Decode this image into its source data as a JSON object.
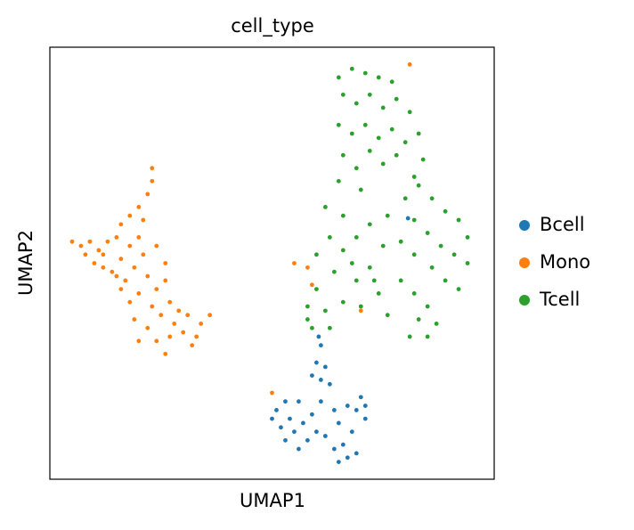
{
  "chart_data": {
    "type": "scatter",
    "title": "cell_type",
    "x_label": "UMAP1",
    "y_label": "UMAP2",
    "xlim": [
      0,
      10
    ],
    "ylim": [
      0,
      10
    ],
    "grid": false,
    "legend": "right",
    "series": [
      {
        "name": "Bcell",
        "color": "#1f77b4",
        "x": [
          5.1,
          5.2,
          5.3,
          5.4,
          5.5,
          5.6,
          5.7,
          5.8,
          5.3,
          5.6,
          5.9,
          6.0,
          6.1,
          6.1,
          6.0,
          6.1,
          6.05,
          6.3,
          6.4,
          6.5,
          6.6,
          6.7,
          6.8,
          6.9,
          7.0,
          7.1,
          6.7,
          6.4,
          6.2,
          7.1,
          5.0,
          6.5,
          6.9,
          5.9,
          6.2,
          8.06
        ],
        "y": [
          1.6,
          1.2,
          0.9,
          1.4,
          1.1,
          0.7,
          1.3,
          0.9,
          1.8,
          1.8,
          1.5,
          1.1,
          1.8,
          2.3,
          2.7,
          3.1,
          3.3,
          2.2,
          1.6,
          1.3,
          0.8,
          0.5,
          1.1,
          1.6,
          1.9,
          1.4,
          1.7,
          0.7,
          1.0,
          1.7,
          1.4,
          0.4,
          0.6,
          2.4,
          2.6,
          6.04
        ]
      },
      {
        "name": "Mono",
        "color": "#ff7f0e",
        "x": [
          0.5,
          0.7,
          0.9,
          0.8,
          1.0,
          1.2,
          1.3,
          1.5,
          1.6,
          1.8,
          2.0,
          2.2,
          2.3,
          2.3,
          2.1,
          1.4,
          1.6,
          1.8,
          2.0,
          1.7,
          1.9,
          2.1,
          2.2,
          2.0,
          1.8,
          1.6,
          2.4,
          2.6,
          2.3,
          2.5,
          2.7,
          2.9,
          1.9,
          2.2,
          2.4,
          2.7,
          3.0,
          3.2,
          3.4,
          3.6,
          2.8,
          1.5,
          1.2,
          2.6,
          2.4,
          3.1,
          2.0,
          2.6,
          3.3,
          1.1,
          5.5,
          5.8,
          5.9,
          5.0,
          7.0,
          8.1
        ],
        "y": [
          5.5,
          5.4,
          5.5,
          5.2,
          5.0,
          5.2,
          5.5,
          5.6,
          5.9,
          6.1,
          6.3,
          6.6,
          6.9,
          7.2,
          6.0,
          4.8,
          5.1,
          5.4,
          5.6,
          4.6,
          4.9,
          5.2,
          4.7,
          4.3,
          4.1,
          4.4,
          4.4,
          4.6,
          4.0,
          3.8,
          4.1,
          3.9,
          3.7,
          3.5,
          3.2,
          3.3,
          3.4,
          3.1,
          3.6,
          3.8,
          3.6,
          4.7,
          4.9,
          5.0,
          5.4,
          3.8,
          3.2,
          2.9,
          3.3,
          5.3,
          5.0,
          4.9,
          4.5,
          2.0,
          3.9,
          9.6
        ]
      },
      {
        "name": "Tcell",
        "color": "#2ca02c",
        "x": [
          6.5,
          6.8,
          7.1,
          7.4,
          7.7,
          6.6,
          6.9,
          7.2,
          7.5,
          7.8,
          8.1,
          8.3,
          6.5,
          6.8,
          7.1,
          7.4,
          7.7,
          8.0,
          8.4,
          6.6,
          6.9,
          7.2,
          7.5,
          7.8,
          6.5,
          7.0,
          8.2,
          8.0,
          8.3,
          8.6,
          8.9,
          9.2,
          9.4,
          8.2,
          8.5,
          8.8,
          9.1,
          9.4,
          7.9,
          8.2,
          8.6,
          8.9,
          9.2,
          7.9,
          8.2,
          8.5,
          8.7,
          8.3,
          8.1,
          8.5,
          6.6,
          6.3,
          6.0,
          6.6,
          6.9,
          7.2,
          7.5,
          7.2,
          6.9,
          6.4,
          6.0,
          5.8,
          5.8,
          6.2,
          6.6,
          7.0,
          7.4,
          7.6,
          6.3,
          7.3,
          5.9,
          6.8,
          6.2,
          7.6
        ],
        "y": [
          9.3,
          9.5,
          9.4,
          9.3,
          9.2,
          8.9,
          8.7,
          8.9,
          8.6,
          8.8,
          8.5,
          8.0,
          8.2,
          8.0,
          8.2,
          7.9,
          8.1,
          7.8,
          7.4,
          7.5,
          7.2,
          7.6,
          7.3,
          7.5,
          6.9,
          6.7,
          7.0,
          6.5,
          6.8,
          6.5,
          6.2,
          6.0,
          5.6,
          6.0,
          5.7,
          5.4,
          5.2,
          5.0,
          5.5,
          5.2,
          4.9,
          4.6,
          4.4,
          4.6,
          4.3,
          4.0,
          3.6,
          3.7,
          3.3,
          3.3,
          6.1,
          5.6,
          5.2,
          5.3,
          5.6,
          5.9,
          5.4,
          4.9,
          4.6,
          4.8,
          4.4,
          4.0,
          3.7,
          3.9,
          4.1,
          4.0,
          4.3,
          3.8,
          3.5,
          4.6,
          3.5,
          5.0,
          6.3,
          6.1
        ]
      }
    ]
  }
}
